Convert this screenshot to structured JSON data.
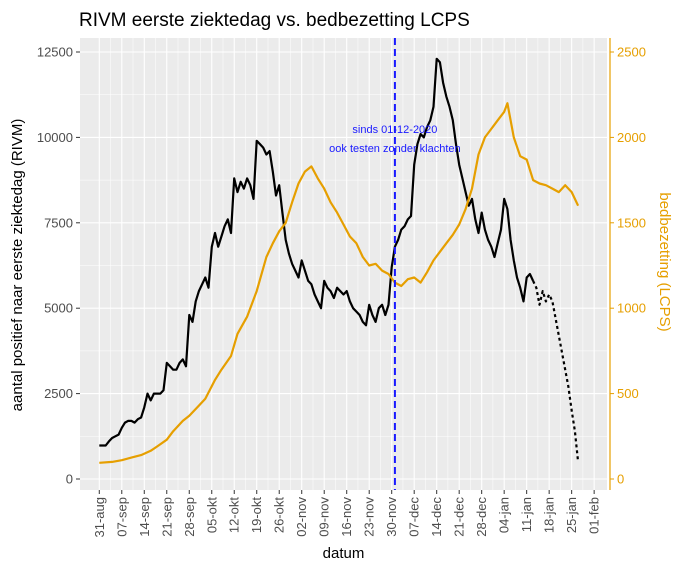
{
  "chart_data": {
    "type": "line",
    "title": "RIVM eerste ziektedag vs. bedbezetting LCPS",
    "xlabel": "datum",
    "ylabel_left": "aantal positief naar eerste ziektedag (RIVM)",
    "ylabel_right": "bedbezetting (LCPS)",
    "x_start": "2020-08-31",
    "x_ticks": [
      "31-aug",
      "07-sep",
      "14-sep",
      "21-sep",
      "28-sep",
      "05-okt",
      "12-okt",
      "19-okt",
      "26-okt",
      "02-nov",
      "09-nov",
      "16-nov",
      "23-nov",
      "30-nov",
      "07-dec",
      "14-dec",
      "21-dec",
      "28-dec",
      "04-jan",
      "11-jan",
      "18-jan",
      "25-jan",
      "01-feb"
    ],
    "ylim_left": [
      0,
      12500
    ],
    "yticks_left": [
      "0",
      "2500",
      "5000",
      "7500",
      "10000",
      "12500"
    ],
    "ylim_right": [
      0,
      2500
    ],
    "yticks_right": [
      "0",
      "500",
      "1000",
      "1500",
      "2000",
      "2500"
    ],
    "grid": true,
    "legend": "none",
    "colors": {
      "rivm": "#000000",
      "lcps": "#e69f00",
      "vline": "#1a1aff",
      "panel": "#ebebeb",
      "grid": "#ffffff"
    },
    "vline": {
      "x": "2020-12-01",
      "label_line1": "sinds 01-12-2020",
      "label_line2": "ook testen zonder klachten"
    },
    "series": [
      {
        "axis": "left",
        "style": "solid",
        "points": [
          [
            "2020-08-31",
            980
          ],
          [
            "2020-09-01",
            980
          ],
          [
            "2020-09-02",
            980
          ],
          [
            "2020-09-03",
            1100
          ],
          [
            "2020-09-04",
            1200
          ],
          [
            "2020-09-05",
            1250
          ],
          [
            "2020-09-06",
            1300
          ],
          [
            "2020-09-07",
            1500
          ],
          [
            "2020-09-08",
            1650
          ],
          [
            "2020-09-09",
            1700
          ],
          [
            "2020-09-10",
            1700
          ],
          [
            "2020-09-11",
            1650
          ],
          [
            "2020-09-12",
            1750
          ],
          [
            "2020-09-13",
            1800
          ],
          [
            "2020-09-14",
            2100
          ],
          [
            "2020-09-15",
            2500
          ],
          [
            "2020-09-16",
            2300
          ],
          [
            "2020-09-17",
            2500
          ],
          [
            "2020-09-18",
            2500
          ],
          [
            "2020-09-19",
            2500
          ],
          [
            "2020-09-20",
            2600
          ],
          [
            "2020-09-21",
            3400
          ],
          [
            "2020-09-22",
            3300
          ],
          [
            "2020-09-23",
            3200
          ],
          [
            "2020-09-24",
            3200
          ],
          [
            "2020-09-25",
            3400
          ],
          [
            "2020-09-26",
            3500
          ],
          [
            "2020-09-27",
            3300
          ],
          [
            "2020-09-28",
            4800
          ],
          [
            "2020-09-29",
            4600
          ],
          [
            "2020-09-30",
            5200
          ],
          [
            "2020-10-01",
            5500
          ],
          [
            "2020-10-02",
            5700
          ],
          [
            "2020-10-03",
            5900
          ],
          [
            "2020-10-04",
            5600
          ],
          [
            "2020-10-05",
            6800
          ],
          [
            "2020-10-06",
            7200
          ],
          [
            "2020-10-07",
            6800
          ],
          [
            "2020-10-08",
            7100
          ],
          [
            "2020-10-09",
            7400
          ],
          [
            "2020-10-10",
            7600
          ],
          [
            "2020-10-11",
            7200
          ],
          [
            "2020-10-12",
            8800
          ],
          [
            "2020-10-13",
            8400
          ],
          [
            "2020-10-14",
            8700
          ],
          [
            "2020-10-15",
            8500
          ],
          [
            "2020-10-16",
            8800
          ],
          [
            "2020-10-17",
            8600
          ],
          [
            "2020-10-18",
            8200
          ],
          [
            "2020-10-19",
            9900
          ],
          [
            "2020-10-20",
            9800
          ],
          [
            "2020-10-21",
            9700
          ],
          [
            "2020-10-22",
            9500
          ],
          [
            "2020-10-23",
            9600
          ],
          [
            "2020-10-24",
            9000
          ],
          [
            "2020-10-25",
            8300
          ],
          [
            "2020-10-26",
            8600
          ],
          [
            "2020-10-27",
            7800
          ],
          [
            "2020-10-28",
            7000
          ],
          [
            "2020-10-29",
            6600
          ],
          [
            "2020-10-30",
            6300
          ],
          [
            "2020-10-31",
            6100
          ],
          [
            "2020-11-01",
            5900
          ],
          [
            "2020-11-02",
            6400
          ],
          [
            "2020-11-03",
            6100
          ],
          [
            "2020-11-04",
            5800
          ],
          [
            "2020-11-05",
            5700
          ],
          [
            "2020-11-06",
            5400
          ],
          [
            "2020-11-07",
            5200
          ],
          [
            "2020-11-08",
            5000
          ],
          [
            "2020-11-09",
            5800
          ],
          [
            "2020-11-10",
            5600
          ],
          [
            "2020-11-11",
            5500
          ],
          [
            "2020-11-12",
            5300
          ],
          [
            "2020-11-13",
            5600
          ],
          [
            "2020-11-14",
            5500
          ],
          [
            "2020-11-15",
            5400
          ],
          [
            "2020-11-16",
            5500
          ],
          [
            "2020-11-17",
            5200
          ],
          [
            "2020-11-18",
            5000
          ],
          [
            "2020-11-19",
            4900
          ],
          [
            "2020-11-20",
            4800
          ],
          [
            "2020-11-21",
            4600
          ],
          [
            "2020-11-22",
            4500
          ],
          [
            "2020-11-23",
            5100
          ],
          [
            "2020-11-24",
            4800
          ],
          [
            "2020-11-25",
            4600
          ],
          [
            "2020-11-26",
            5000
          ],
          [
            "2020-11-27",
            5100
          ],
          [
            "2020-11-28",
            4800
          ],
          [
            "2020-11-29",
            5100
          ],
          [
            "2020-11-30",
            6200
          ],
          [
            "2020-12-01",
            6800
          ],
          [
            "2020-12-02",
            7000
          ],
          [
            "2020-12-03",
            7300
          ],
          [
            "2020-12-04",
            7400
          ],
          [
            "2020-12-05",
            7600
          ],
          [
            "2020-12-06",
            7700
          ],
          [
            "2020-12-07",
            9200
          ],
          [
            "2020-12-08",
            9800
          ],
          [
            "2020-12-09",
            10100
          ],
          [
            "2020-12-10",
            10000
          ],
          [
            "2020-12-11",
            10300
          ],
          [
            "2020-12-12",
            10500
          ],
          [
            "2020-12-13",
            10900
          ],
          [
            "2020-12-14",
            12300
          ],
          [
            "2020-12-15",
            12200
          ],
          [
            "2020-12-16",
            11600
          ],
          [
            "2020-12-17",
            11200
          ],
          [
            "2020-12-18",
            10900
          ],
          [
            "2020-12-19",
            10500
          ],
          [
            "2020-12-20",
            9800
          ],
          [
            "2020-12-21",
            9200
          ],
          [
            "2020-12-22",
            8800
          ],
          [
            "2020-12-23",
            8400
          ],
          [
            "2020-12-24",
            8000
          ],
          [
            "2020-12-25",
            8200
          ],
          [
            "2020-12-26",
            7600
          ],
          [
            "2020-12-27",
            7200
          ],
          [
            "2020-12-28",
            7800
          ],
          [
            "2020-12-29",
            7300
          ],
          [
            "2020-12-30",
            7000
          ],
          [
            "2020-12-31",
            6800
          ],
          [
            "2021-01-01",
            6500
          ],
          [
            "2021-01-02",
            6900
          ],
          [
            "2021-01-03",
            7300
          ],
          [
            "2021-01-04",
            8200
          ],
          [
            "2021-01-05",
            7900
          ],
          [
            "2021-01-06",
            7000
          ],
          [
            "2021-01-07",
            6400
          ],
          [
            "2021-01-08",
            5900
          ],
          [
            "2021-01-09",
            5600
          ],
          [
            "2021-01-10",
            5200
          ],
          [
            "2021-01-11",
            5900
          ],
          [
            "2021-01-12",
            6000
          ],
          [
            "2021-01-13",
            5800
          ]
        ]
      },
      {
        "axis": "left",
        "style": "dotted",
        "points": [
          [
            "2021-01-13",
            5800
          ],
          [
            "2021-01-14",
            5600
          ],
          [
            "2021-01-15",
            5100
          ],
          [
            "2021-01-16",
            5500
          ],
          [
            "2021-01-17",
            5200
          ],
          [
            "2021-01-18",
            5400
          ],
          [
            "2021-01-19",
            5200
          ],
          [
            "2021-01-20",
            4700
          ],
          [
            "2021-01-21",
            4200
          ],
          [
            "2021-01-22",
            3700
          ],
          [
            "2021-01-23",
            3200
          ],
          [
            "2021-01-24",
            2700
          ],
          [
            "2021-01-25",
            2000
          ],
          [
            "2021-01-26",
            1400
          ],
          [
            "2021-01-27",
            500
          ]
        ]
      },
      {
        "axis": "right",
        "style": "solid",
        "points": [
          [
            "2020-08-31",
            95
          ],
          [
            "2020-09-04",
            100
          ],
          [
            "2020-09-07",
            110
          ],
          [
            "2020-09-10",
            125
          ],
          [
            "2020-09-13",
            140
          ],
          [
            "2020-09-16",
            165
          ],
          [
            "2020-09-18",
            190
          ],
          [
            "2020-09-21",
            230
          ],
          [
            "2020-09-23",
            280
          ],
          [
            "2020-09-26",
            340
          ],
          [
            "2020-09-28",
            370
          ],
          [
            "2020-10-01",
            430
          ],
          [
            "2020-10-03",
            470
          ],
          [
            "2020-10-06",
            580
          ],
          [
            "2020-10-08",
            640
          ],
          [
            "2020-10-11",
            720
          ],
          [
            "2020-10-13",
            850
          ],
          [
            "2020-10-16",
            950
          ],
          [
            "2020-10-19",
            1100
          ],
          [
            "2020-10-22",
            1300
          ],
          [
            "2020-10-24",
            1380
          ],
          [
            "2020-10-26",
            1450
          ],
          [
            "2020-10-28",
            1500
          ],
          [
            "2020-10-30",
            1620
          ],
          [
            "2020-11-01",
            1730
          ],
          [
            "2020-11-03",
            1800
          ],
          [
            "2020-11-05",
            1830
          ],
          [
            "2020-11-07",
            1760
          ],
          [
            "2020-11-09",
            1700
          ],
          [
            "2020-11-11",
            1620
          ],
          [
            "2020-11-13",
            1560
          ],
          [
            "2020-11-15",
            1490
          ],
          [
            "2020-11-17",
            1420
          ],
          [
            "2020-11-19",
            1380
          ],
          [
            "2020-11-21",
            1300
          ],
          [
            "2020-11-23",
            1250
          ],
          [
            "2020-11-25",
            1260
          ],
          [
            "2020-11-27",
            1220
          ],
          [
            "2020-11-29",
            1200
          ],
          [
            "2020-12-01",
            1150
          ],
          [
            "2020-12-03",
            1130
          ],
          [
            "2020-12-05",
            1170
          ],
          [
            "2020-12-07",
            1180
          ],
          [
            "2020-12-09",
            1150
          ],
          [
            "2020-12-11",
            1210
          ],
          [
            "2020-12-13",
            1280
          ],
          [
            "2020-12-15",
            1330
          ],
          [
            "2020-12-17",
            1380
          ],
          [
            "2020-12-19",
            1430
          ],
          [
            "2020-12-21",
            1490
          ],
          [
            "2020-12-23",
            1580
          ],
          [
            "2020-12-25",
            1700
          ],
          [
            "2020-12-27",
            1900
          ],
          [
            "2020-12-29",
            2000
          ],
          [
            "2020-12-31",
            2050
          ],
          [
            "2021-01-02",
            2100
          ],
          [
            "2021-01-04",
            2150
          ],
          [
            "2021-01-05",
            2200
          ],
          [
            "2021-01-07",
            2000
          ],
          [
            "2021-01-09",
            1890
          ],
          [
            "2021-01-11",
            1870
          ],
          [
            "2021-01-13",
            1750
          ],
          [
            "2021-01-15",
            1730
          ],
          [
            "2021-01-17",
            1720
          ],
          [
            "2021-01-19",
            1700
          ],
          [
            "2021-01-21",
            1680
          ],
          [
            "2021-01-23",
            1720
          ],
          [
            "2021-01-25",
            1680
          ],
          [
            "2021-01-27",
            1600
          ]
        ]
      }
    ]
  }
}
